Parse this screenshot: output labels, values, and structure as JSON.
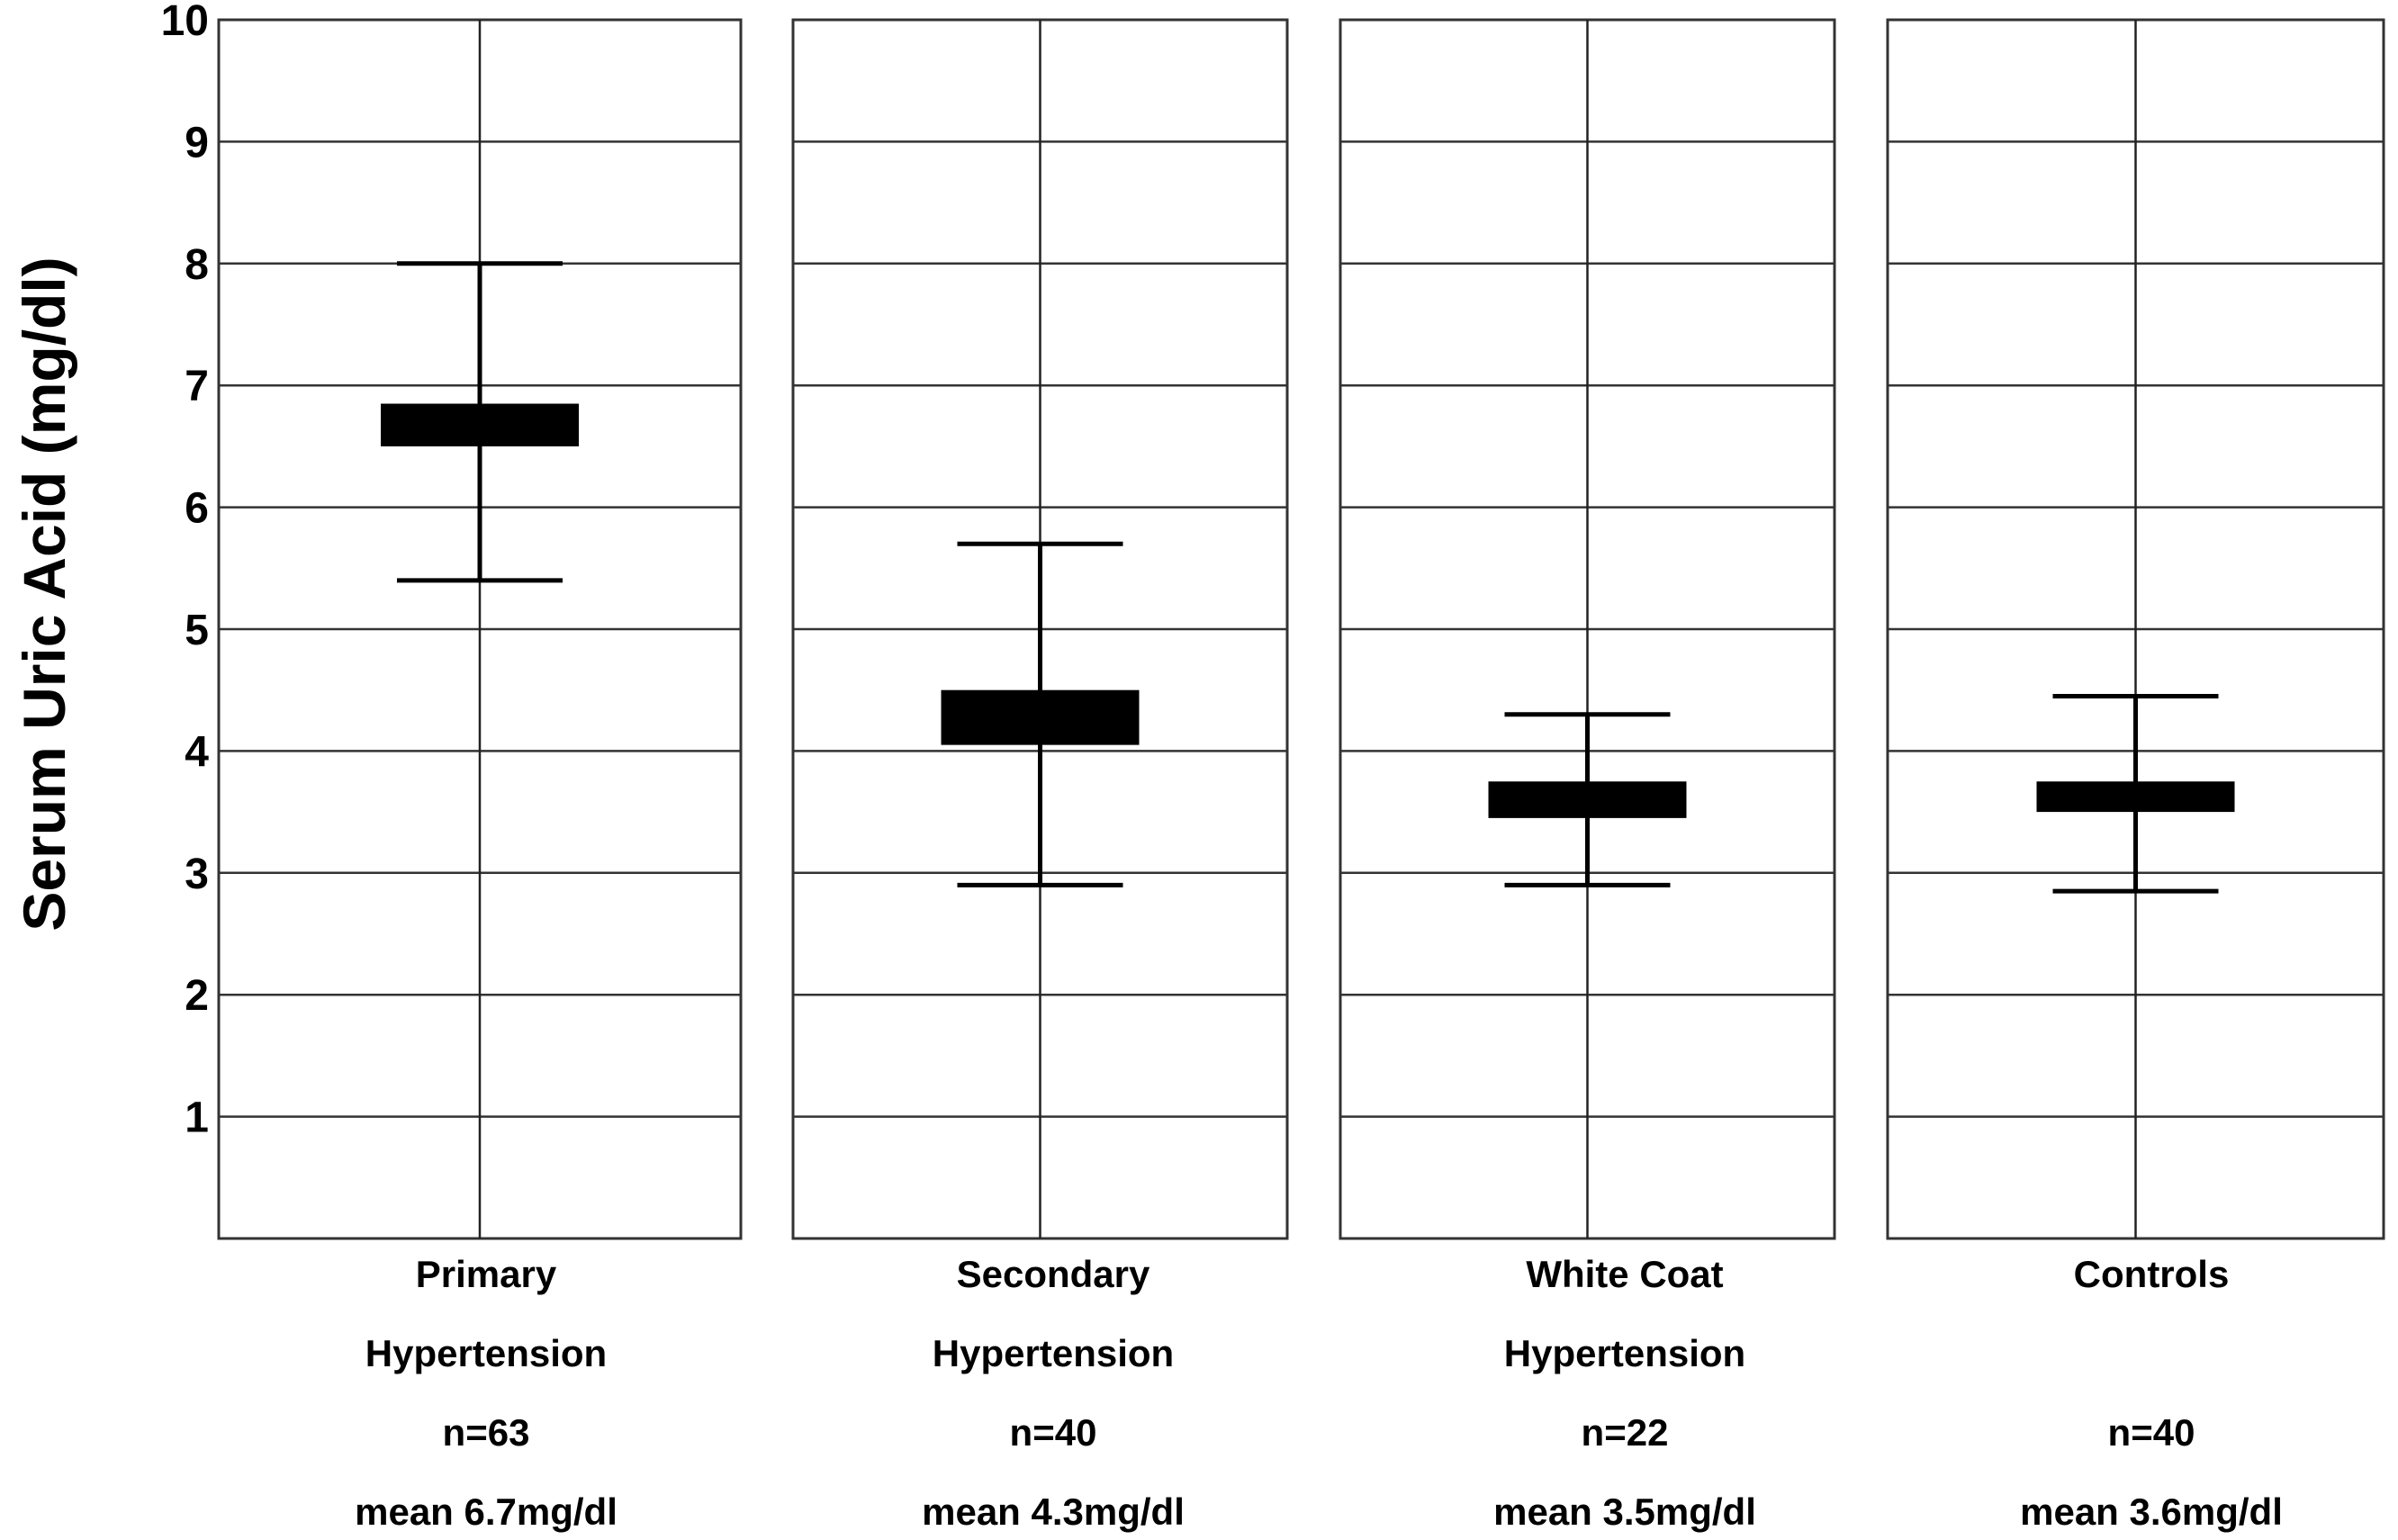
{
  "chart_data": {
    "type": "errorbar",
    "title": "",
    "xlabel": "",
    "ylabel": "Serum Uric Acid (mg/dl)",
    "ylim": [
      0,
      10
    ],
    "yticks": [
      1,
      2,
      3,
      4,
      5,
      6,
      7,
      8,
      9,
      10
    ],
    "grid": true,
    "groups": [
      {
        "label_line1": "Primary",
        "label_line2": "Hypertension",
        "n_label": "n=63",
        "mean_label": "mean 6.7mg/dl",
        "box_low": 6.5,
        "box_high": 6.85,
        "whisker_low": 5.4,
        "whisker_high": 8.0
      },
      {
        "label_line1": "Secondary",
        "label_line2": "Hypertension",
        "n_label": "n=40",
        "mean_label": "mean 4.3mg/dl",
        "box_low": 4.05,
        "box_high": 4.5,
        "whisker_low": 2.9,
        "whisker_high": 5.7
      },
      {
        "label_line1": "White Coat",
        "label_line2": "Hypertension",
        "n_label": "n=22",
        "mean_label": "mean 3.5mg/dl",
        "box_low": 3.45,
        "box_high": 3.75,
        "whisker_low": 2.9,
        "whisker_high": 4.3
      },
      {
        "label_line1": "Controls",
        "label_line2": "",
        "n_label": "n=40",
        "mean_label": "mean 3.6mg/dl",
        "box_low": 3.5,
        "box_high": 3.75,
        "whisker_low": 2.85,
        "whisker_high": 4.45
      }
    ]
  }
}
